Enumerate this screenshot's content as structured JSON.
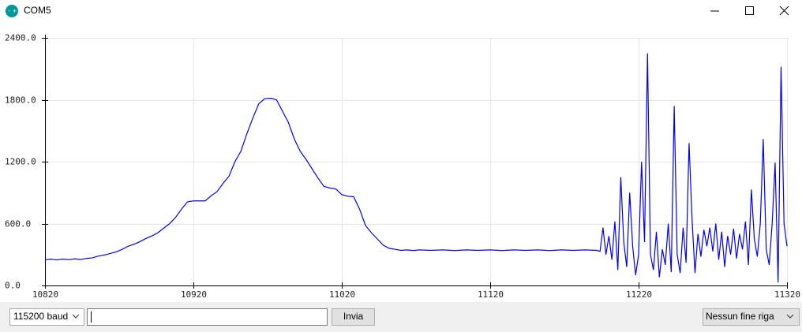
{
  "window": {
    "title": "COM5"
  },
  "chart_data": {
    "type": "line",
    "x": [
      10820,
      10824,
      10828,
      10832,
      10836,
      10840,
      10844,
      10848,
      10852,
      10856,
      10860,
      10864,
      10868,
      10872,
      10876,
      10880,
      10884,
      10888,
      10892,
      10896,
      10900,
      10904,
      10908,
      10912,
      10916,
      10920,
      10924,
      10928,
      10932,
      10936,
      10940,
      10944,
      10948,
      10952,
      10956,
      10960,
      10964,
      10968,
      10972,
      10976,
      10980,
      10984,
      10988,
      10992,
      10996,
      11000,
      11004,
      11008,
      11012,
      11016,
      11020,
      11024,
      11028,
      11032,
      11036,
      11040,
      11044,
      11048,
      11052,
      11056,
      11060,
      11064,
      11068,
      11072,
      11080,
      11088,
      11096,
      11104,
      11112,
      11120,
      11128,
      11136,
      11144,
      11152,
      11160,
      11168,
      11176,
      11184,
      11192,
      11194,
      11196,
      11198,
      11200,
      11202,
      11204,
      11206,
      11208,
      11210,
      11212,
      11214,
      11216,
      11218,
      11220,
      11222,
      11224,
      11226,
      11228,
      11230,
      11232,
      11234,
      11236,
      11238,
      11240,
      11242,
      11244,
      11246,
      11248,
      11250,
      11252,
      11254,
      11256,
      11258,
      11260,
      11262,
      11264,
      11266,
      11268,
      11270,
      11272,
      11274,
      11276,
      11278,
      11280,
      11282,
      11284,
      11286,
      11288,
      11290,
      11292,
      11294,
      11296,
      11298,
      11300,
      11302,
      11304,
      11306,
      11308,
      11310,
      11312,
      11314,
      11316,
      11318,
      11320
    ],
    "values": [
      250,
      255,
      248,
      256,
      250,
      258,
      252,
      262,
      268,
      285,
      295,
      310,
      325,
      350,
      380,
      400,
      425,
      455,
      480,
      510,
      555,
      600,
      660,
      740,
      810,
      820,
      820,
      820,
      870,
      910,
      990,
      1060,
      1200,
      1300,
      1470,
      1620,
      1760,
      1810,
      1815,
      1800,
      1690,
      1580,
      1420,
      1300,
      1220,
      1130,
      1040,
      960,
      945,
      935,
      880,
      865,
      860,
      740,
      580,
      510,
      450,
      390,
      360,
      350,
      340,
      345,
      338,
      345,
      340,
      345,
      338,
      345,
      340,
      345,
      338,
      345,
      340,
      345,
      338,
      345,
      340,
      345,
      340,
      330,
      560,
      300,
      480,
      250,
      620,
      150,
      1050,
      420,
      180,
      900,
      380,
      100,
      300,
      1200,
      420,
      2250,
      300,
      150,
      520,
      80,
      350,
      200,
      600,
      130,
      1740,
      300,
      120,
      560,
      220,
      1380,
      650,
      120,
      500,
      280,
      540,
      380,
      560,
      330,
      600,
      250,
      520,
      180,
      480,
      300,
      550,
      260,
      500,
      350,
      620,
      200,
      930,
      450,
      280,
      600,
      1420,
      350,
      200,
      600,
      1190,
      30,
      2120,
      600,
      380
    ],
    "color": "#0000ff",
    "xlim": [
      10820,
      11320
    ],
    "xticks": [
      10820,
      10920,
      11020,
      11120,
      11220,
      11320
    ],
    "ylim": [
      0,
      2400
    ],
    "yticks": [
      {
        "value": 0,
        "label": "0.0"
      },
      {
        "value": 600,
        "label": "600.0"
      },
      {
        "value": 1200,
        "label": "1200.0"
      },
      {
        "value": 1800,
        "label": "1800.0"
      },
      {
        "value": 2400,
        "label": "2400.0"
      }
    ],
    "grid": true
  },
  "controls": {
    "baud": "115200 baud",
    "send": "Invia",
    "line_ending": "Nessun fine riga"
  }
}
